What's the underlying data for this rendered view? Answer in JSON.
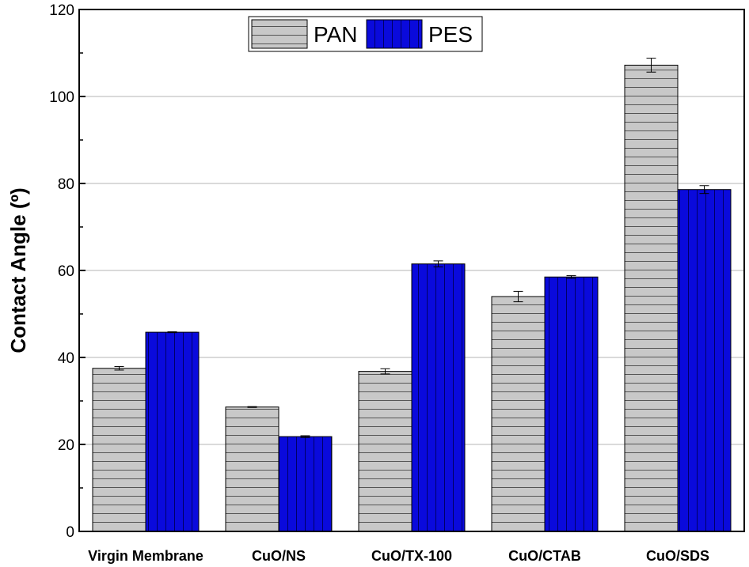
{
  "chart_data": {
    "type": "bar",
    "title": "",
    "xlabel": "",
    "ylabel": "Contact Angle (º)",
    "ylim": [
      0,
      120
    ],
    "yticks": [
      0,
      20,
      40,
      60,
      80,
      100,
      120
    ],
    "grid": true,
    "legend_position": "top-center",
    "categories": [
      "Virgin Membrane",
      "CuO/NS",
      "CuO/TX-100",
      "CuO/CTAB",
      "CuO/SDS"
    ],
    "series": [
      {
        "name": "PAN",
        "color": "#c8c8c8",
        "pattern": "horizontal-lines",
        "values": [
          37.5,
          28.6,
          36.8,
          54.0,
          107.2
        ],
        "errors": [
          0.4,
          0.1,
          0.6,
          1.2,
          1.6
        ]
      },
      {
        "name": "PES",
        "color": "#0a0adc",
        "pattern": "vertical-lines",
        "values": [
          45.8,
          21.8,
          61.5,
          58.5,
          78.6
        ],
        "errors": [
          0.1,
          0.2,
          0.7,
          0.3,
          0.9
        ]
      }
    ]
  }
}
